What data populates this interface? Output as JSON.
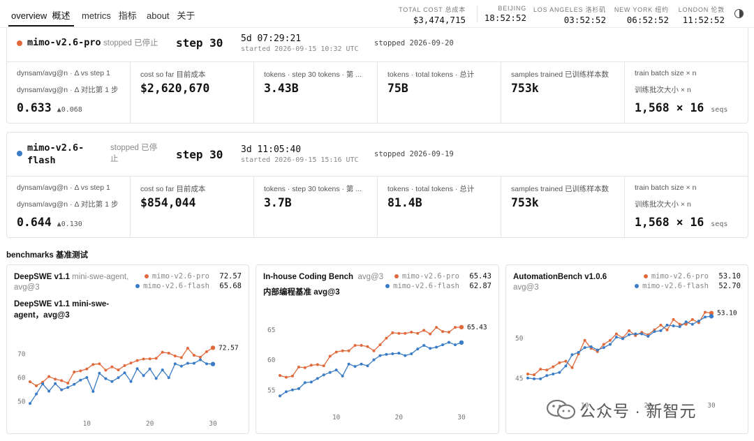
{
  "nav": {
    "tabs": [
      {
        "en": "overview",
        "cn": "概述"
      },
      {
        "en": "metrics",
        "cn": "指标"
      },
      {
        "en": "about",
        "cn": "关于"
      }
    ],
    "total_cost": {
      "label": "TOTAL COST 总成本",
      "value": "$3,474,715"
    },
    "clocks": [
      {
        "label": "BEIJING",
        "time": "18:52:52"
      },
      {
        "label": "LOS ANGELES 洛杉矶",
        "time": "03:52:52"
      },
      {
        "label": "NEW YORK 纽约",
        "time": "06:52:52"
      },
      {
        "label": "LONDON 伦敦",
        "time": "11:52:52"
      }
    ],
    "theme_icon": "contrast-icon"
  },
  "runs": [
    {
      "name": "mimo-v2.6-pro",
      "name_lines": [
        "mimo-v2.6-pro"
      ],
      "color": "#e06a3c",
      "status": "stopped 已停止",
      "step": "step 30",
      "duration": "5d 07:29:21",
      "started": "started 2026-09-15 10:32 UTC",
      "stopped": "stopped 2026-09-20",
      "metrics": {
        "dynsam": {
          "label_en": "dynsam/avg@n · Δ vs step 1",
          "label_cn": "dynsam/avg@n · Δ 对比第 1 步",
          "value": "0.633",
          "delta": "▲0.068"
        },
        "cost": {
          "label": "cost so far 目前成本",
          "value": "$2,620,670"
        },
        "tokens_step": {
          "label": "tokens · step 30 tokens · 第 ...",
          "value": "3.43B"
        },
        "tokens_total": {
          "label": "tokens · total tokens · 总计",
          "value": "75B"
        },
        "samples": {
          "label": "samples trained 已训练样本数",
          "value": "753k"
        },
        "batch": {
          "label_en": "train batch size × n",
          "label_cn": "训练批次大小 × n",
          "value": "1,568 × 16",
          "unit": "seqs"
        }
      }
    },
    {
      "name": "mimo-v2.6-flash",
      "name_lines": [
        "mimo-v2.6-",
        "flash"
      ],
      "color": "#3a7cc6",
      "status": "stopped 已停止",
      "status_lines": [
        "stopped 已停",
        "止"
      ],
      "step": "step 30",
      "duration": "3d 11:05:40",
      "started": "started 2026-09-15 15:16 UTC",
      "stopped": "stopped 2026-09-19",
      "metrics": {
        "dynsam": {
          "label_en": "dynsam/avg@n · Δ vs step 1",
          "label_cn": "dynsam/avg@n · Δ 对比第 1 步",
          "value": "0.644",
          "delta": "▲0.130"
        },
        "cost": {
          "label": "cost so far 目前成本",
          "value": "$854,044"
        },
        "tokens_step": {
          "label": "tokens · step 30 tokens · 第 ...",
          "value": "3.7B"
        },
        "tokens_total": {
          "label": "tokens · total tokens · 总计",
          "value": "81.4B"
        },
        "samples": {
          "label": "samples trained 已训练样本数",
          "value": "753k"
        },
        "batch": {
          "label_en": "train batch size × n",
          "label_cn": "训练批次大小 × n",
          "value": "1,568 × 16",
          "unit": "seqs"
        }
      }
    }
  ],
  "benchmarks_title": "benchmarks 基准测试",
  "chart_data": [
    {
      "type": "line",
      "title": "DeepSWE v1.1",
      "subtitle": "mini-swe-agent, avg@3",
      "title_cn_lines": [
        "DeepSWE v1.1 mini-swe-",
        "agent，avg@3"
      ],
      "x": [
        1,
        2,
        3,
        4,
        5,
        6,
        7,
        8,
        9,
        10,
        11,
        12,
        13,
        14,
        15,
        16,
        17,
        18,
        19,
        20,
        21,
        22,
        23,
        24,
        25,
        26,
        27,
        28,
        29,
        30
      ],
      "xticks": [
        10,
        20,
        30
      ],
      "yticks": [
        50,
        60,
        70
      ],
      "ylim": [
        47,
        78
      ],
      "end_label": "72.57",
      "series": [
        {
          "name": "mimo-v2.6-pro",
          "color": "#e06a3c",
          "last": "72.57",
          "values": [
            58.2,
            56.5,
            58.0,
            60.4,
            59.3,
            58.7,
            57.6,
            62.3,
            62.8,
            63.6,
            65.5,
            65.8,
            63.1,
            64.5,
            63.2,
            65.0,
            66.1,
            67.2,
            67.8,
            67.9,
            68.1,
            70.7,
            70.3,
            69.1,
            68.4,
            72.4,
            69.4,
            68.6,
            70.9,
            72.57
          ]
        },
        {
          "name": "mimo-v2.6-flash",
          "color": "#3a7cc6",
          "last": "65.68",
          "values": [
            49.0,
            53.0,
            57.3,
            54.2,
            57.4,
            54.8,
            55.8,
            57.1,
            58.9,
            60.0,
            54.1,
            61.8,
            59.5,
            58.3,
            59.9,
            62.0,
            58.3,
            63.7,
            60.8,
            63.6,
            59.6,
            63.2,
            59.9,
            65.8,
            64.8,
            66.0,
            66.0,
            67.5,
            65.8,
            65.68
          ]
        }
      ]
    },
    {
      "type": "line",
      "title": "In-house Coding Bench",
      "subtitle": "avg@3",
      "title_cn_lines": [
        "内部编程基准 avg@3"
      ],
      "x": [
        1,
        2,
        3,
        4,
        5,
        6,
        7,
        8,
        9,
        10,
        11,
        12,
        13,
        14,
        15,
        16,
        17,
        18,
        19,
        20,
        21,
        22,
        23,
        24,
        25,
        26,
        27,
        28,
        29,
        30
      ],
      "xticks": [
        10,
        20,
        30
      ],
      "yticks": [
        55,
        60,
        65
      ],
      "ylim": [
        53,
        67.5
      ],
      "end_label": "65.43",
      "series": [
        {
          "name": "mimo-v2.6-pro",
          "color": "#e06a3c",
          "last": "65.43",
          "values": [
            57.4,
            57.1,
            57.3,
            58.8,
            58.7,
            59.1,
            59.2,
            59.0,
            60.6,
            61.3,
            61.5,
            61.5,
            62.4,
            62.4,
            62.2,
            61.5,
            62.5,
            63.6,
            64.5,
            64.4,
            64.4,
            64.6,
            64.4,
            64.9,
            64.3,
            65.4,
            64.7,
            64.6,
            65.4,
            65.43
          ]
        },
        {
          "name": "mimo-v2.6-flash",
          "color": "#3a7cc6",
          "last": "62.87",
          "values": [
            54.0,
            54.7,
            55.0,
            55.2,
            56.2,
            56.3,
            56.9,
            57.5,
            57.9,
            58.3,
            57.3,
            59.3,
            58.9,
            59.3,
            59.0,
            60.0,
            60.7,
            60.9,
            61.0,
            61.1,
            60.7,
            61.0,
            61.8,
            62.4,
            61.9,
            62.1,
            62.5,
            62.9,
            62.5,
            62.87
          ]
        }
      ]
    },
    {
      "type": "line",
      "title": "AutomationBench v1.0.6",
      "subtitle": "avg@3",
      "title_cn_lines": [],
      "x": [
        1,
        2,
        3,
        4,
        5,
        6,
        7,
        8,
        9,
        10,
        11,
        12,
        13,
        14,
        15,
        16,
        17,
        18,
        19,
        20,
        21,
        22,
        23,
        24,
        25,
        26,
        27,
        28,
        29,
        30
      ],
      "xticks": [
        10,
        20,
        30
      ],
      "yticks": [
        45,
        50
      ],
      "ylim": [
        43.5,
        54.2
      ],
      "end_label": "53.10",
      "series": [
        {
          "name": "mimo-v2.6-pro",
          "color": "#e06a3c",
          "last": "53.10",
          "values": [
            45.5,
            45.4,
            46.1,
            46.0,
            46.4,
            46.9,
            47.1,
            46.3,
            48.0,
            49.7,
            48.7,
            48.3,
            49.2,
            49.7,
            50.5,
            50.0,
            50.9,
            50.3,
            50.7,
            50.4,
            51.0,
            51.6,
            51.0,
            52.3,
            51.7,
            51.7,
            52.3,
            51.9,
            53.2,
            53.1
          ]
        },
        {
          "name": "mimo-v2.6-flash",
          "color": "#3a7cc6",
          "last": "52.70",
          "values": [
            45.0,
            44.9,
            44.9,
            45.3,
            45.5,
            45.7,
            46.5,
            47.9,
            48.2,
            48.8,
            48.9,
            48.5,
            48.8,
            49.2,
            50.1,
            49.9,
            50.4,
            50.5,
            50.5,
            50.2,
            50.8,
            50.9,
            51.6,
            51.5,
            51.4,
            52.0,
            51.7,
            52.1,
            52.6,
            52.7
          ]
        }
      ]
    }
  ],
  "watermark": "公众号 · 新智元"
}
